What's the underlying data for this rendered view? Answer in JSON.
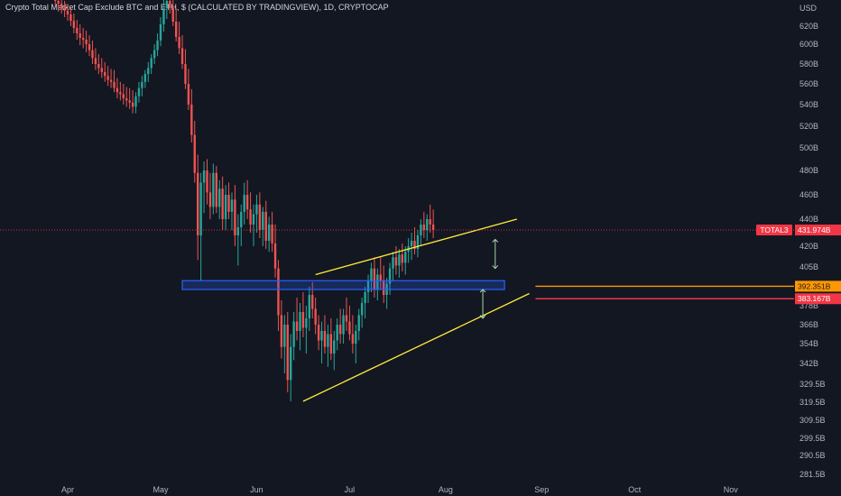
{
  "header": {
    "title": "Crypto Total Market Cap Exclude BTC and ETH, $ (CALCULATED BY TRADINGVIEW), 1D, CRYPTOCAP"
  },
  "chart_data": {
    "type": "candlestick",
    "currency_label": "USD",
    "y_ticks": [
      {
        "label": "620B",
        "value": 620
      },
      {
        "label": "600B",
        "value": 600
      },
      {
        "label": "580B",
        "value": 580
      },
      {
        "label": "560B",
        "value": 560
      },
      {
        "label": "540B",
        "value": 540
      },
      {
        "label": "520B",
        "value": 520
      },
      {
        "label": "500B",
        "value": 500
      },
      {
        "label": "480B",
        "value": 480
      },
      {
        "label": "460B",
        "value": 460
      },
      {
        "label": "440B",
        "value": 440
      },
      {
        "label": "420B",
        "value": 420
      },
      {
        "label": "405B",
        "value": 405
      },
      {
        "label": "392B",
        "value": 392
      },
      {
        "label": "378B",
        "value": 378
      },
      {
        "label": "366B",
        "value": 366
      },
      {
        "label": "354B",
        "value": 354
      },
      {
        "label": "342B",
        "value": 342
      },
      {
        "label": "329.5B",
        "value": 329.5
      },
      {
        "label": "319.5B",
        "value": 319.5
      },
      {
        "label": "309.5B",
        "value": 309.5
      },
      {
        "label": "299.5B",
        "value": 299.5
      },
      {
        "label": "290.5B",
        "value": 290.5
      },
      {
        "label": "281.5B",
        "value": 281.5
      }
    ],
    "x_ticks": [
      "Apr",
      "May",
      "Jun",
      "Jul",
      "Aug",
      "Sep",
      "Oct",
      "Nov"
    ],
    "price_labels": [
      {
        "label": "TOTAL3",
        "value": "431.974B",
        "color": "#f23645"
      },
      {
        "label": "",
        "value": "392.351B",
        "color": "#ff9800"
      },
      {
        "label": "",
        "value": "383.167B",
        "color": "#f23645"
      }
    ],
    "series": [
      {
        "start": "2022-03-28",
        "ohlc": [
          [
            655,
            660,
            642,
            648
          ],
          [
            648,
            655,
            636,
            645
          ],
          [
            645,
            652,
            634,
            640
          ],
          [
            640,
            648,
            630,
            637
          ],
          [
            637,
            645,
            626,
            633
          ],
          [
            633,
            641,
            620,
            626
          ],
          [
            626,
            634,
            612,
            618
          ],
          [
            618,
            627,
            605,
            612
          ],
          [
            612,
            622,
            599,
            607
          ],
          [
            607,
            618,
            596,
            605
          ],
          [
            605,
            615,
            592,
            600
          ],
          [
            600,
            610,
            588,
            594
          ],
          [
            594,
            604,
            580,
            586
          ],
          [
            586,
            596,
            574,
            580
          ],
          [
            580,
            590,
            570,
            576
          ],
          [
            576,
            586,
            566,
            572
          ],
          [
            572,
            582,
            562,
            568
          ],
          [
            568,
            578,
            558,
            564
          ],
          [
            564,
            575,
            556,
            562
          ],
          [
            562,
            574,
            552,
            556
          ],
          [
            556,
            566,
            546,
            552
          ],
          [
            552,
            562,
            544,
            550
          ],
          [
            550,
            560,
            540,
            546
          ],
          [
            546,
            557,
            538,
            544
          ],
          [
            544,
            556,
            536,
            542
          ],
          [
            542,
            554,
            532,
            538
          ],
          [
            538,
            552,
            532,
            548
          ],
          [
            548,
            562,
            542,
            556
          ],
          [
            556,
            568,
            548,
            562
          ],
          [
            562,
            574,
            556,
            570
          ],
          [
            570,
            582,
            562,
            576
          ],
          [
            576,
            590,
            570,
            586
          ],
          [
            586,
            600,
            580,
            594
          ],
          [
            594,
            612,
            588,
            604
          ],
          [
            604,
            630,
            598,
            622
          ],
          [
            622,
            650,
            614,
            640
          ],
          [
            640,
            660,
            628,
            648
          ],
          [
            648,
            664,
            634,
            640
          ],
          [
            640,
            655,
            620,
            625
          ],
          [
            625,
            640,
            603,
            608
          ],
          [
            608,
            625,
            590,
            596
          ],
          [
            596,
            610,
            575,
            580
          ],
          [
            580,
            595,
            555,
            560
          ],
          [
            560,
            575,
            535,
            540
          ],
          [
            540,
            555,
            505,
            512
          ],
          [
            512,
            525,
            470,
            478
          ],
          [
            478,
            494,
            410,
            428
          ],
          [
            428,
            478,
            396,
            470
          ],
          [
            470,
            488,
            445,
            480
          ],
          [
            480,
            490,
            452,
            462
          ],
          [
            462,
            478,
            440,
            450
          ],
          [
            450,
            486,
            444,
            478
          ],
          [
            478,
            484,
            445,
            450
          ],
          [
            450,
            472,
            440,
            465
          ],
          [
            465,
            475,
            432,
            440
          ],
          [
            440,
            468,
            432,
            460
          ],
          [
            460,
            470,
            440,
            446
          ],
          [
            446,
            462,
            432,
            456
          ],
          [
            456,
            468,
            420,
            428
          ],
          [
            428,
            444,
            406,
            434
          ],
          [
            434,
            452,
            420,
            446
          ],
          [
            446,
            470,
            436,
            460
          ],
          [
            460,
            472,
            440,
            448
          ],
          [
            448,
            462,
            430,
            436
          ],
          [
            436,
            452,
            420,
            444
          ],
          [
            444,
            460,
            430,
            452
          ],
          [
            452,
            462,
            426,
            432
          ],
          [
            432,
            450,
            420,
            446
          ],
          [
            446,
            455,
            418,
            424
          ],
          [
            424,
            442,
            416,
            436
          ],
          [
            436,
            446,
            416,
            422
          ],
          [
            422,
            436,
            398,
            404
          ],
          [
            404,
            410,
            362,
            372
          ],
          [
            372,
            382,
            345,
            352
          ],
          [
            352,
            372,
            336,
            366
          ],
          [
            366,
            374,
            325,
            332
          ],
          [
            332,
            360,
            320,
            352
          ],
          [
            352,
            374,
            344,
            368
          ],
          [
            368,
            384,
            356,
            362
          ],
          [
            362,
            380,
            350,
            374
          ],
          [
            374,
            388,
            358,
            364
          ],
          [
            364,
            378,
            348,
            370
          ],
          [
            370,
            392,
            362,
            386
          ],
          [
            386,
            395,
            370,
            376
          ],
          [
            376,
            384,
            360,
            366
          ],
          [
            366,
            372,
            350,
            356
          ],
          [
            356,
            368,
            342,
            362
          ],
          [
            362,
            372,
            348,
            352
          ],
          [
            352,
            366,
            340,
            360
          ],
          [
            360,
            370,
            344,
            348
          ],
          [
            348,
            362,
            338,
            356
          ],
          [
            356,
            370,
            350,
            366
          ],
          [
            366,
            376,
            354,
            360
          ],
          [
            360,
            376,
            354,
            372
          ],
          [
            372,
            384,
            362,
            368
          ],
          [
            368,
            378,
            356,
            360
          ],
          [
            360,
            372,
            348,
            354
          ],
          [
            354,
            366,
            342,
            362
          ],
          [
            362,
            376,
            356,
            372
          ],
          [
            372,
            384,
            364,
            380
          ],
          [
            380,
            392,
            370,
            388
          ],
          [
            388,
            400,
            380,
            396
          ],
          [
            396,
            408,
            388,
            404
          ],
          [
            404,
            412,
            384,
            390
          ],
          [
            390,
            404,
            382,
            400
          ],
          [
            400,
            412,
            390,
            396
          ],
          [
            396,
            406,
            380,
            386
          ],
          [
            386,
            398,
            376,
            394
          ],
          [
            394,
            408,
            386,
            404
          ],
          [
            404,
            416,
            396,
            412
          ],
          [
            412,
            420,
            400,
            406
          ],
          [
            406,
            418,
            398,
            414
          ],
          [
            414,
            422,
            402,
            408
          ],
          [
            408,
            420,
            400,
            416
          ],
          [
            416,
            426,
            408,
            420
          ],
          [
            420,
            430,
            410,
            424
          ],
          [
            424,
            434,
            414,
            418
          ],
          [
            418,
            432,
            412,
            428
          ],
          [
            428,
            440,
            420,
            436
          ],
          [
            436,
            446,
            426,
            432
          ],
          [
            432,
            444,
            424,
            440
          ],
          [
            440,
            452,
            430,
            436
          ],
          [
            436,
            448,
            426,
            432
          ]
        ]
      }
    ],
    "annotations": {
      "upper_trendline": {
        "from": [
          "2022-06-20",
          400
        ],
        "to": [
          "2022-08-24",
          440
        ]
      },
      "lower_trendline": {
        "from": [
          "2022-06-16",
          320
        ],
        "to": [
          "2022-08-28",
          387
        ]
      },
      "support_zone": {
        "from": "2022-05-08",
        "to": "2022-08-20",
        "low": 390,
        "high": 396
      },
      "horizontal_lines": [
        {
          "from": "2022-08-30",
          "value": 392.351,
          "color": "#ff9800"
        },
        {
          "from": "2022-08-30",
          "value": 383.167,
          "color": "#f23645"
        }
      ],
      "current_price_line": {
        "value": 431.974,
        "color": "#f23645"
      }
    }
  }
}
